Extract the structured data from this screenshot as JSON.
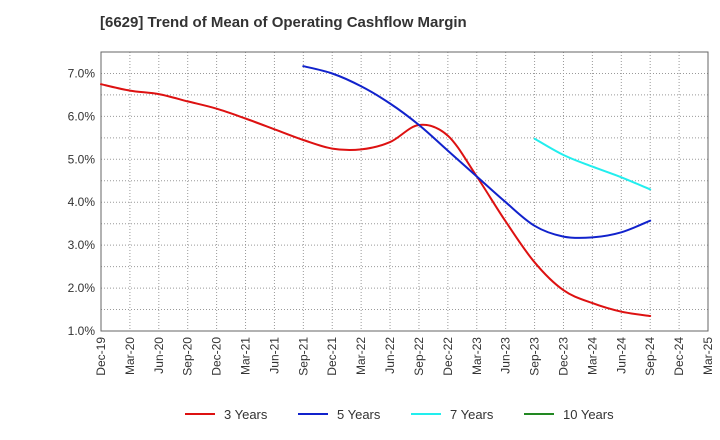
{
  "chart_data": {
    "type": "line",
    "title": "[6629]  Trend of Mean of Operating Cashflow Margin",
    "xlabel": "",
    "ylabel": "",
    "ylim": [
      1.0,
      7.5
    ],
    "y_ticks": [
      1.0,
      2.0,
      3.0,
      4.0,
      5.0,
      6.0,
      7.0
    ],
    "y_tick_labels": [
      "1.0%",
      "2.0%",
      "3.0%",
      "4.0%",
      "5.0%",
      "6.0%",
      "7.0%"
    ],
    "categories": [
      "Dec-19",
      "Mar-20",
      "Jun-20",
      "Sep-20",
      "Dec-20",
      "Mar-21",
      "Jun-21",
      "Sep-21",
      "Dec-21",
      "Mar-22",
      "Jun-22",
      "Sep-22",
      "Dec-22",
      "Mar-23",
      "Jun-23",
      "Sep-23",
      "Dec-23",
      "Mar-24",
      "Jun-24",
      "Sep-24",
      "Dec-24",
      "Mar-25"
    ],
    "x_tick_labels": [
      "Dec-19",
      "Mar-20",
      "Jun-20",
      "Sep-20",
      "Dec-20",
      "Mar-21",
      "Jun-21",
      "Sep-21",
      "Dec-21",
      "Mar-22",
      "Jun-22",
      "Sep-22",
      "Dec-22",
      "Mar-23",
      "Jun-23",
      "Sep-23",
      "Dec-23",
      "Mar-24",
      "Jun-24",
      "Sep-24",
      "Dec-24",
      "Mar-25"
    ],
    "grid": true,
    "legend_position": "bottom",
    "series": [
      {
        "name": "3 Years",
        "color": "#dd1111",
        "values": [
          6.75,
          6.6,
          6.52,
          6.35,
          6.18,
          5.95,
          5.7,
          5.45,
          5.25,
          5.23,
          5.4,
          5.8,
          5.55,
          4.6,
          3.55,
          2.6,
          1.95,
          1.65,
          1.45,
          1.35,
          null,
          null
        ]
      },
      {
        "name": "5 Years",
        "color": "#1122cc",
        "values": [
          null,
          null,
          null,
          null,
          null,
          null,
          null,
          7.17,
          7.0,
          6.7,
          6.3,
          5.8,
          5.2,
          4.6,
          4.0,
          3.45,
          3.2,
          3.18,
          3.3,
          3.57,
          null,
          null
        ]
      },
      {
        "name": "7 Years",
        "color": "#22eeee",
        "values": [
          null,
          null,
          null,
          null,
          null,
          null,
          null,
          null,
          null,
          null,
          null,
          null,
          null,
          null,
          null,
          5.48,
          5.1,
          4.83,
          4.58,
          4.3,
          null,
          null
        ]
      },
      {
        "name": "10 Years",
        "color": "#228822",
        "values": [
          null,
          null,
          null,
          null,
          null,
          null,
          null,
          null,
          null,
          null,
          null,
          null,
          null,
          null,
          null,
          null,
          null,
          null,
          null,
          null,
          null,
          null
        ]
      }
    ]
  }
}
